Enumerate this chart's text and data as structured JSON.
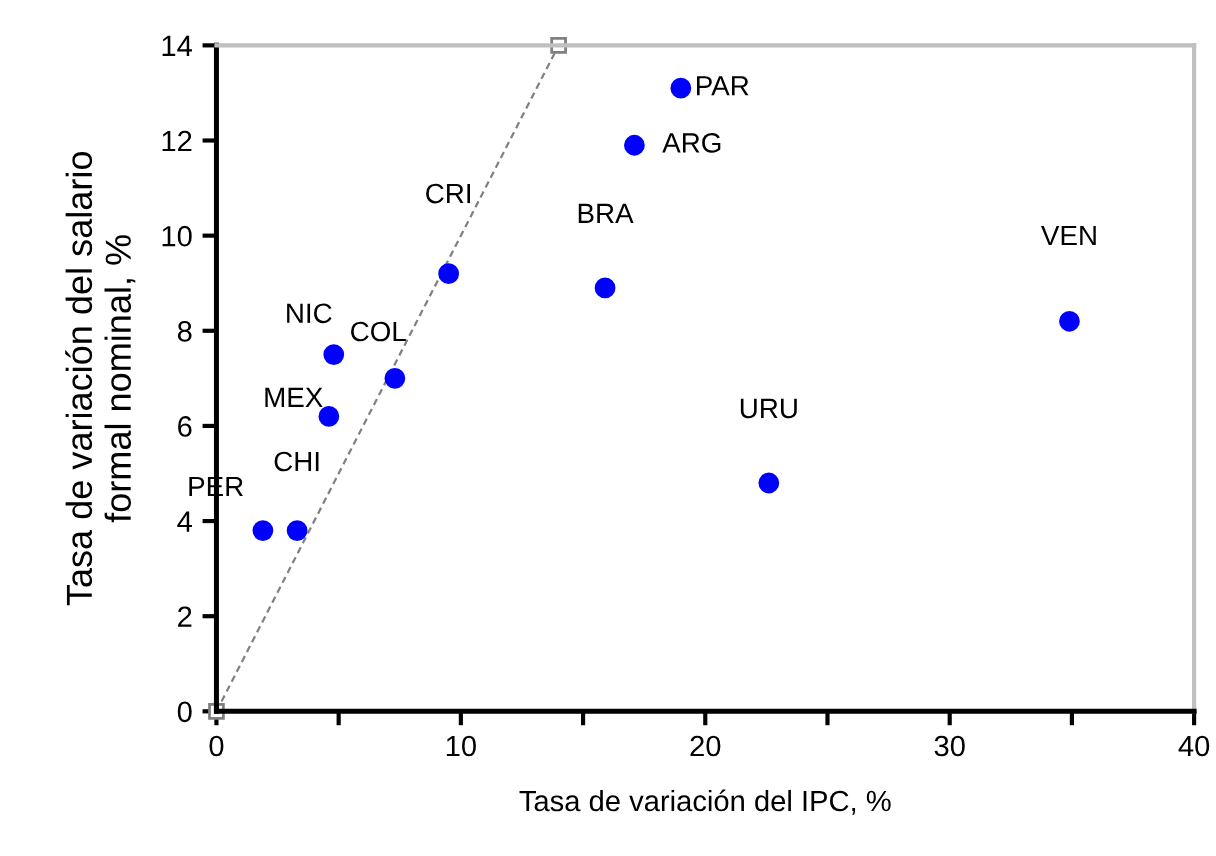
{
  "chart_data": {
    "type": "scatter",
    "xlabel": "Tasa de variación del IPC, %",
    "ylabel": "Tasa de variación del salario\nformal nominal, %",
    "xlim": [
      0,
      40
    ],
    "ylim": [
      0,
      14
    ],
    "xticks": [
      0,
      {
        "value": 5,
        "label": null
      },
      10,
      {
        "value": 15,
        "label": null
      },
      20,
      {
        "value": 25,
        "label": null
      },
      30,
      {
        "value": 35,
        "label": null
      },
      40
    ],
    "yticks": [
      0,
      2,
      4,
      6,
      8,
      10,
      12,
      14
    ],
    "grid": false,
    "legend": false,
    "series": [
      {
        "color": "#0000ff",
        "marker": "circle",
        "x": [
          1.9,
          3.3,
          4.6,
          4.8,
          7.3,
          9.5,
          15.9,
          17.1,
          19.0,
          22.6,
          34.9
        ],
        "values": [
          3.8,
          3.8,
          6.2,
          7.5,
          7.0,
          9.2,
          8.9,
          11.9,
          13.1,
          4.8,
          8.2
        ]
      },
      {
        "type": "line",
        "color": "#808080",
        "marker": "square",
        "line_style": "dashed",
        "x": [
          0,
          14
        ],
        "values": [
          0,
          14
        ]
      }
    ],
    "annotations": [
      {
        "text": "PER",
        "x": 1.9,
        "y": 3.8
      },
      {
        "text": "CHI",
        "x": 3.3,
        "y": 3.8
      },
      {
        "text": "MEX",
        "x": 4.6,
        "y": 6.2
      },
      {
        "text": "NIC",
        "x": 4.8,
        "y": 7.5
      },
      {
        "text": "COL",
        "x": 7.3,
        "y": 7.0
      },
      {
        "text": "CRI",
        "x": 9.5,
        "y": 9.2
      },
      {
        "text": "BRA",
        "x": 15.9,
        "y": 8.9
      },
      {
        "text": "ARG",
        "x": 17.1,
        "y": 11.9
      },
      {
        "text": "PAR",
        "x": 19.0,
        "y": 13.1
      },
      {
        "text": "URU",
        "x": 22.6,
        "y": 4.8
      },
      {
        "text": "VEN",
        "x": 34.9,
        "y": 8.2
      }
    ]
  }
}
